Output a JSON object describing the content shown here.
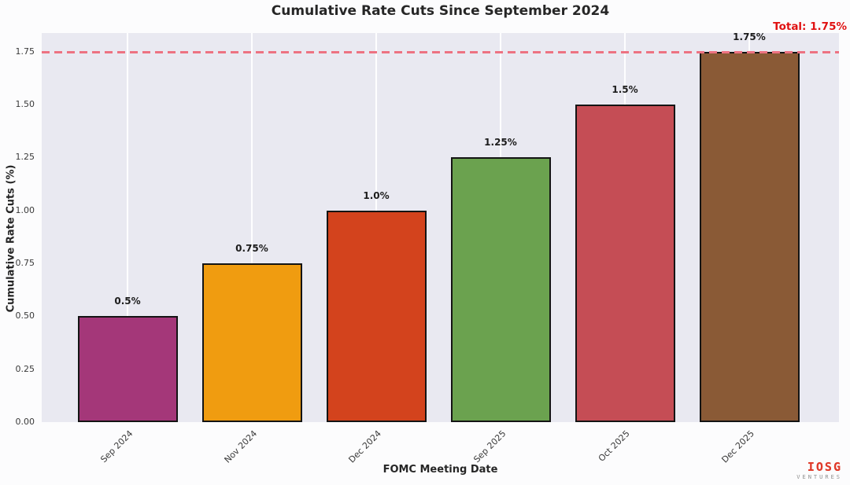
{
  "chart_data": {
    "type": "bar",
    "title": "Cumulative Rate Cuts Since September 2024",
    "xlabel": "FOMC Meeting Date",
    "ylabel": "Cumulative Rate Cuts (%)",
    "categories": [
      "Sep 2024",
      "Nov 2024",
      "Dec 2024",
      "Sep 2025",
      "Oct 2025",
      "Dec 2025"
    ],
    "values": [
      0.5,
      0.75,
      1.0,
      1.25,
      1.5,
      1.75
    ],
    "bar_labels": [
      "0.5%",
      "0.75%",
      "1.0%",
      "1.25%",
      "1.5%",
      "1.75%"
    ],
    "bar_colors": [
      "#a43779",
      "#f09c10",
      "#d3431d",
      "#6ba24f",
      "#c54d55",
      "#8a5a36"
    ],
    "bar_edge_color": "#141414",
    "y_ticks": [
      "0.00",
      "0.25",
      "0.50",
      "0.75",
      "1.00",
      "1.25",
      "1.50",
      "1.75"
    ],
    "y_tick_values": [
      0,
      0.25,
      0.5,
      0.75,
      1.0,
      1.25,
      1.5,
      1.75
    ],
    "ylim": [
      0,
      1.8375
    ],
    "grid": "vertical-white-gridlines",
    "legend": "none",
    "plot_background": "#e9e9f1",
    "total_line": {
      "value": 1.75,
      "label": "Total: 1.75%",
      "line_color": "#ed7282",
      "label_color": "#e01212",
      "style": "dashed"
    }
  },
  "branding": {
    "logo_text": "IOSG",
    "logo_subtext": "VENTURES",
    "logo_color": "#e03a2a"
  }
}
